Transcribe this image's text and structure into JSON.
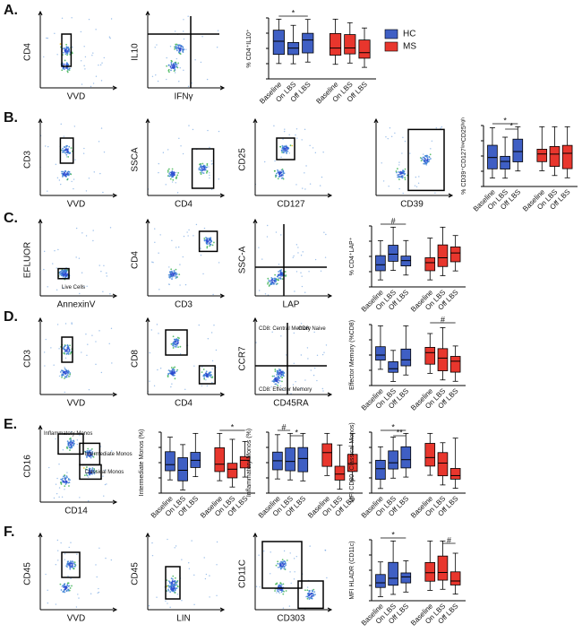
{
  "categories": [
    "Baseline",
    "On LBS",
    "Off LBS"
  ],
  "panels": [
    {
      "label": "A.",
      "flows": [
        {
          "x": "VVD",
          "y": "CD4"
        },
        {
          "x": "IFNγ",
          "y": "IL10"
        }
      ],
      "boxes": [
        {
          "y": "% CD4⁺IL10⁺",
          "marks": [
            "*"
          ]
        }
      ],
      "legend": [
        "HC",
        "MS"
      ]
    },
    {
      "label": "B.",
      "flows": [
        {
          "x": "VVD",
          "y": "CD3"
        },
        {
          "x": "CD4",
          "y": "SSCA"
        },
        {
          "x": "CD127",
          "y": "CD25"
        },
        {
          "x": "CD39"
        }
      ],
      "boxes": [
        {
          "y": "% CD39⁺CD127ˡᵒʷCD25ʰᶦᵍʰ",
          "marks": [
            "*",
            "*"
          ]
        }
      ]
    },
    {
      "label": "C.",
      "flows": [
        {
          "x": "AnnexinV",
          "y": "EFLUOR",
          "notes": [
            "Live Cells"
          ]
        },
        {
          "x": "CD3",
          "y": "CD4"
        },
        {
          "x": "LAP",
          "y": "SSC-A"
        }
      ],
      "boxes": [
        {
          "y": "% CD4⁺LAP⁺",
          "marks": [
            "#"
          ]
        }
      ]
    },
    {
      "label": "D.",
      "flows": [
        {
          "x": "VVD",
          "y": "CD3"
        },
        {
          "x": "CD4",
          "y": "CD8"
        },
        {
          "x": "CD45RA",
          "y": "CCR7",
          "notes": [
            "CD8: Central Memory",
            "CD8: Naive",
            "CD8: Effector Memory"
          ]
        }
      ],
      "boxes": [
        {
          "y": "Effector Memory (%CD8)",
          "marks": [
            "#"
          ]
        }
      ]
    },
    {
      "label": "E.",
      "flows": [
        {
          "x": "CD14",
          "y": "CD16",
          "notes": [
            "Inflammatory Monos",
            "Intermediate Monos",
            "Classical Monos"
          ]
        }
      ],
      "boxes": [
        {
          "y": "Intermediate Monos (%)",
          "marks": [
            "*"
          ]
        },
        {
          "y": "Inflammatory Monos (%)",
          "marks": [
            "#",
            "*"
          ]
        },
        {
          "y": "MFI CD80 (Classical Monos)",
          "marks": [
            "*",
            "**"
          ]
        }
      ]
    },
    {
      "label": "F.",
      "flows": [
        {
          "x": "VVD",
          "y": "CD45"
        },
        {
          "x": "LIN",
          "y": "CD45"
        },
        {
          "x": "CD303",
          "y": "CD11C"
        }
      ],
      "boxes": [
        {
          "y": "MFI HLADR (CD11c)",
          "marks": [
            "*",
            "#"
          ]
        }
      ]
    }
  ]
}
